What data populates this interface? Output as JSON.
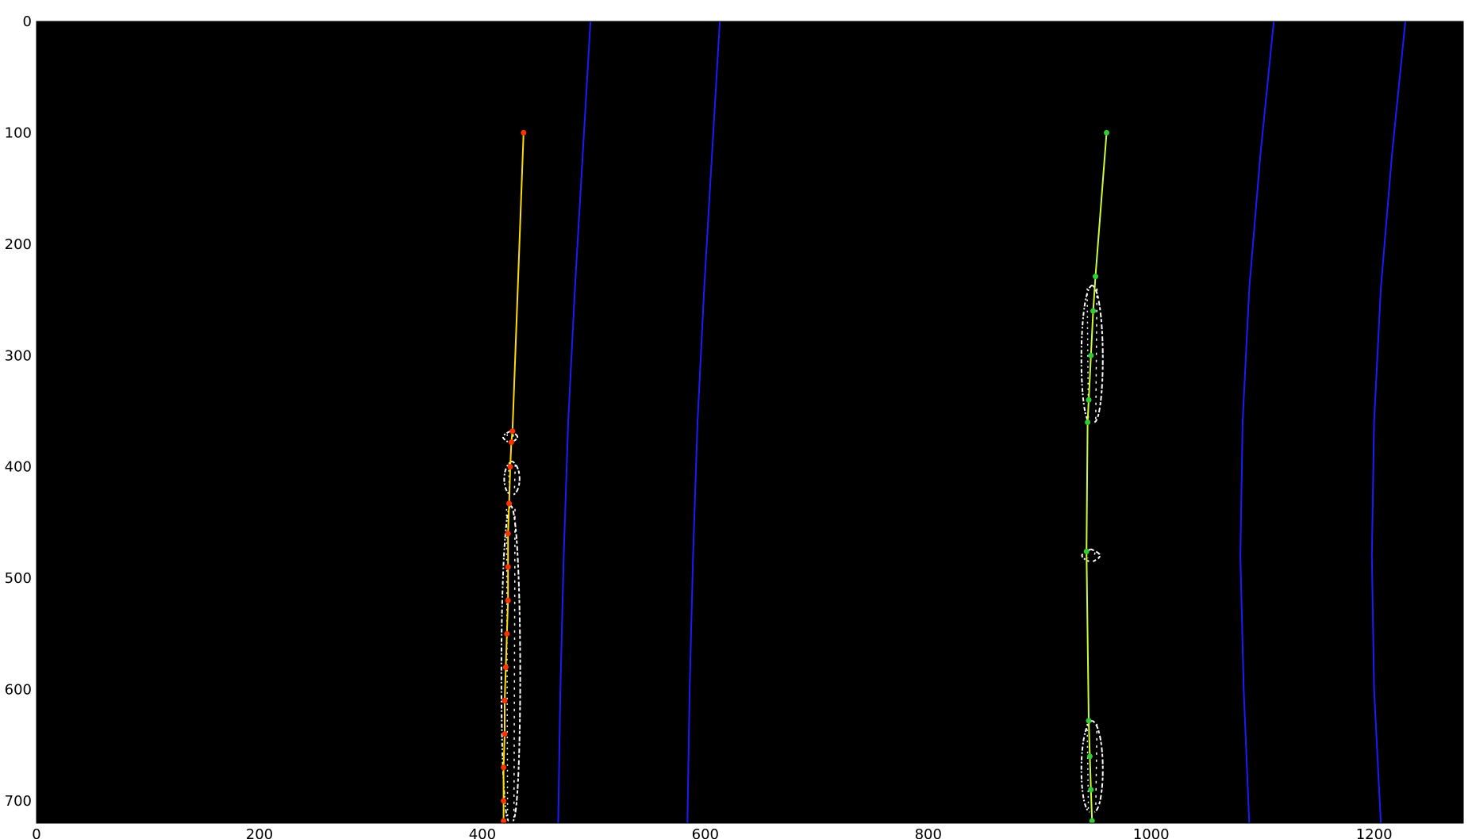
{
  "chart_data": {
    "type": "image",
    "description_free": true,
    "xlim": [
      0,
      1280
    ],
    "ylim": [
      720,
      0
    ],
    "x_ticks": [
      0,
      200,
      400,
      600,
      800,
      1000,
      1200
    ],
    "y_ticks": [
      0,
      100,
      200,
      300,
      400,
      500,
      600,
      700
    ],
    "background_color": "#000000",
    "search_boundaries": {
      "color": "#1a1aff",
      "left_lane": {
        "inner": [
          [
            497,
            0
          ],
          [
            490,
            120
          ],
          [
            483,
            240
          ],
          [
            477,
            360
          ],
          [
            473,
            480
          ],
          [
            470,
            600
          ],
          [
            468,
            720
          ]
        ],
        "outer": [
          [
            613,
            0
          ],
          [
            606,
            120
          ],
          [
            599,
            240
          ],
          [
            593,
            360
          ],
          [
            589,
            480
          ],
          [
            586,
            600
          ],
          [
            584,
            720
          ]
        ]
      },
      "right_lane": {
        "inner": [
          [
            1110,
            0
          ],
          [
            1098,
            120
          ],
          [
            1088,
            240
          ],
          [
            1082,
            360
          ],
          [
            1080,
            480
          ],
          [
            1083,
            600
          ],
          [
            1088,
            720
          ]
        ],
        "outer": [
          [
            1228,
            0
          ],
          [
            1216,
            120
          ],
          [
            1206,
            240
          ],
          [
            1200,
            360
          ],
          [
            1198,
            480
          ],
          [
            1200,
            600
          ],
          [
            1206,
            720
          ]
        ]
      }
    },
    "left_fit": {
      "line_color": "#ffdd00",
      "point_color": "#ff3300",
      "points": [
        [
          437,
          100
        ],
        [
          427,
          368
        ],
        [
          426,
          378
        ],
        [
          425,
          400
        ],
        [
          424,
          433
        ],
        [
          423,
          460
        ],
        [
          423,
          490
        ],
        [
          423,
          520
        ],
        [
          422,
          550
        ],
        [
          421,
          580
        ],
        [
          420,
          610
        ],
        [
          420,
          640
        ],
        [
          419,
          670
        ],
        [
          419,
          700
        ],
        [
          419,
          718
        ]
      ]
    },
    "right_fit": {
      "line_color": "#ccff33",
      "point_color": "#33cc33",
      "points": [
        [
          960,
          100
        ],
        [
          950,
          229
        ],
        [
          948,
          260
        ],
        [
          946,
          300
        ],
        [
          944,
          340
        ],
        [
          943,
          360
        ],
        [
          942,
          476
        ],
        [
          944,
          628
        ],
        [
          945,
          660
        ],
        [
          946,
          690
        ],
        [
          947,
          718
        ]
      ]
    },
    "left_pixels": [
      {
        "y0": 368,
        "y1": 378,
        "x0": 418,
        "x1": 432
      },
      {
        "y0": 395,
        "y1": 425,
        "x0": 419,
        "x1": 434
      },
      {
        "y0": 435,
        "y1": 718,
        "x0": 416,
        "x1": 435
      }
    ],
    "right_pixels": [
      {
        "y0": 237,
        "y1": 360,
        "x0": 936,
        "x1": 958
      },
      {
        "y0": 474,
        "y1": 485,
        "x0": 937,
        "x1": 955
      },
      {
        "y0": 628,
        "y1": 710,
        "x0": 936,
        "x1": 958
      }
    ]
  }
}
